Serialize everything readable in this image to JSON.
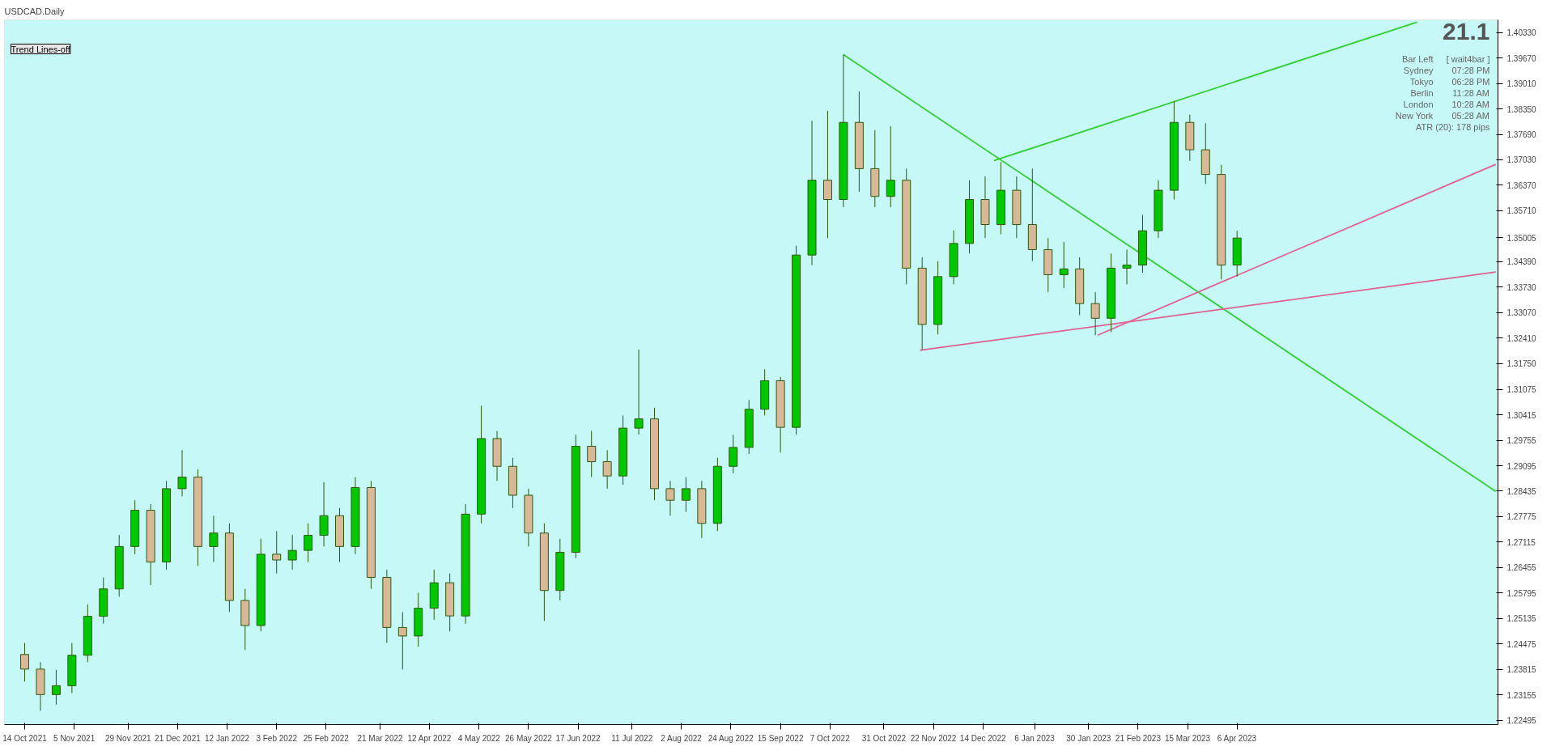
{
  "chart_data": {
    "type": "candlestick",
    "title": "USDCAD.Daily",
    "x": [
      "2021-10-14",
      "2021-10-21",
      "2021-10-28",
      "2021-11-04",
      "2021-11-11",
      "2021-11-18",
      "2021-11-25",
      "2021-12-02",
      "2021-12-09",
      "2021-12-16",
      "2021-12-23",
      "2021-12-30",
      "2022-01-06",
      "2022-01-13",
      "2022-01-20",
      "2022-01-27",
      "2022-02-03",
      "2022-02-10",
      "2022-02-17",
      "2022-02-24",
      "2022-03-03",
      "2022-03-10",
      "2022-03-17",
      "2022-03-24",
      "2022-03-31",
      "2022-04-07",
      "2022-04-14",
      "2022-04-21",
      "2022-04-28",
      "2022-05-05",
      "2022-05-12",
      "2022-05-19",
      "2022-05-26",
      "2022-06-02",
      "2022-06-09",
      "2022-06-16",
      "2022-06-23",
      "2022-06-30",
      "2022-07-07",
      "2022-07-14",
      "2022-07-21",
      "2022-07-28",
      "2022-08-04",
      "2022-08-11",
      "2022-08-18",
      "2022-08-25",
      "2022-09-01",
      "2022-09-08",
      "2022-09-15",
      "2022-09-22",
      "2022-09-29",
      "2022-10-06",
      "2022-10-13",
      "2022-10-20",
      "2022-10-27",
      "2022-11-03",
      "2022-11-10",
      "2022-11-17",
      "2022-11-24",
      "2022-12-01",
      "2022-12-08",
      "2022-12-15",
      "2022-12-22",
      "2022-12-29",
      "2023-01-05",
      "2023-01-12",
      "2023-01-19",
      "2023-01-26",
      "2023-02-02",
      "2023-02-09",
      "2023-02-16",
      "2023-02-23",
      "2023-03-02",
      "2023-03-09",
      "2023-03-16",
      "2023-03-23",
      "2023-03-30",
      "2023-04-06"
    ],
    "ohlc": [
      [
        1.242,
        1.245,
        1.235,
        1.2382
      ],
      [
        1.2382,
        1.24,
        1.2274,
        1.2316
      ],
      [
        1.2316,
        1.238,
        1.229,
        1.2339
      ],
      [
        1.2339,
        1.245,
        1.232,
        1.2418
      ],
      [
        1.2418,
        1.255,
        1.24,
        1.2519
      ],
      [
        1.2519,
        1.262,
        1.25,
        1.259
      ],
      [
        1.259,
        1.273,
        1.257,
        1.27
      ],
      [
        1.27,
        1.282,
        1.268,
        1.2794
      ],
      [
        1.2794,
        1.281,
        1.26,
        1.266
      ],
      [
        1.266,
        1.287,
        1.264,
        1.285
      ],
      [
        1.285,
        1.295,
        1.283,
        1.288
      ],
      [
        1.288,
        1.29,
        1.265,
        1.27
      ],
      [
        1.27,
        1.278,
        1.266,
        1.2735
      ],
      [
        1.2735,
        1.276,
        1.253,
        1.256
      ],
      [
        1.256,
        1.259,
        1.2432,
        1.2495
      ],
      [
        1.2495,
        1.272,
        1.248,
        1.268
      ],
      [
        1.268,
        1.274,
        1.263,
        1.2665
      ],
      [
        1.2665,
        1.273,
        1.264,
        1.269
      ],
      [
        1.269,
        1.276,
        1.266,
        1.2729
      ],
      [
        1.2729,
        1.2867,
        1.27,
        1.278
      ],
      [
        1.278,
        1.28,
        1.266,
        1.27
      ],
      [
        1.27,
        1.288,
        1.268,
        1.2853
      ],
      [
        1.2853,
        1.287,
        1.259,
        1.262
      ],
      [
        1.262,
        1.264,
        1.245,
        1.249
      ],
      [
        1.249,
        1.253,
        1.2381,
        1.2468
      ],
      [
        1.2468,
        1.258,
        1.244,
        1.254
      ],
      [
        1.254,
        1.264,
        1.251,
        1.2606
      ],
      [
        1.2606,
        1.263,
        1.248,
        1.252
      ],
      [
        1.252,
        1.281,
        1.25,
        1.2784
      ],
      [
        1.2784,
        1.3065,
        1.276,
        1.298
      ],
      [
        1.298,
        1.3,
        1.287,
        1.2908
      ],
      [
        1.2908,
        1.293,
        1.28,
        1.2833
      ],
      [
        1.2833,
        1.285,
        1.27,
        1.2735
      ],
      [
        1.2735,
        1.276,
        1.2507,
        1.2586
      ],
      [
        1.2586,
        1.272,
        1.256,
        1.2685
      ],
      [
        1.2685,
        1.299,
        1.267,
        1.296
      ],
      [
        1.296,
        1.3,
        1.288,
        1.292
      ],
      [
        1.292,
        1.295,
        1.285,
        1.2883
      ],
      [
        1.2883,
        1.304,
        1.286,
        1.3007
      ],
      [
        1.3007,
        1.3211,
        1.299,
        1.3031
      ],
      [
        1.3031,
        1.306,
        1.282,
        1.285
      ],
      [
        1.285,
        1.287,
        1.278,
        1.282
      ],
      [
        1.282,
        1.288,
        1.279,
        1.285
      ],
      [
        1.285,
        1.287,
        1.2722,
        1.276
      ],
      [
        1.276,
        1.293,
        1.274,
        1.2908
      ],
      [
        1.2908,
        1.299,
        1.289,
        1.2957
      ],
      [
        1.2957,
        1.308,
        1.294,
        1.3056
      ],
      [
        1.3056,
        1.316,
        1.304,
        1.313
      ],
      [
        1.313,
        1.314,
        1.2944,
        1.3009
      ],
      [
        1.3009,
        1.348,
        1.299,
        1.3456
      ],
      [
        1.3456,
        1.3804,
        1.343,
        1.365
      ],
      [
        1.365,
        1.383,
        1.35,
        1.36
      ],
      [
        1.36,
        1.3976,
        1.358,
        1.38
      ],
      [
        1.38,
        1.388,
        1.362,
        1.368
      ],
      [
        1.368,
        1.378,
        1.358,
        1.3608
      ],
      [
        1.3608,
        1.379,
        1.358,
        1.365
      ],
      [
        1.365,
        1.368,
        1.338,
        1.3422
      ],
      [
        1.3422,
        1.345,
        1.3211,
        1.3276
      ],
      [
        1.3276,
        1.344,
        1.325,
        1.34
      ],
      [
        1.34,
        1.352,
        1.338,
        1.3486
      ],
      [
        1.3486,
        1.365,
        1.346,
        1.36
      ],
      [
        1.36,
        1.366,
        1.35,
        1.3535
      ],
      [
        1.3535,
        1.3697,
        1.351,
        1.3624
      ],
      [
        1.3624,
        1.366,
        1.35,
        1.3535
      ],
      [
        1.3535,
        1.368,
        1.344,
        1.347
      ],
      [
        1.347,
        1.35,
        1.336,
        1.3405
      ],
      [
        1.3405,
        1.349,
        1.337,
        1.342
      ],
      [
        1.342,
        1.345,
        1.33,
        1.333
      ],
      [
        1.333,
        1.336,
        1.3248,
        1.3292
      ],
      [
        1.3292,
        1.346,
        1.3256,
        1.3422
      ],
      [
        1.3422,
        1.347,
        1.338,
        1.343
      ],
      [
        1.343,
        1.356,
        1.341,
        1.3519
      ],
      [
        1.3519,
        1.365,
        1.35,
        1.3624
      ],
      [
        1.3624,
        1.3855,
        1.36,
        1.38
      ],
      [
        1.38,
        1.382,
        1.37,
        1.3729
      ],
      [
        1.3729,
        1.3798,
        1.364,
        1.3665
      ],
      [
        1.3665,
        1.369,
        1.3393,
        1.343
      ],
      [
        1.343,
        1.3519,
        1.34,
        1.35
      ]
    ],
    "series": [
      {
        "type": "line",
        "color": "#32cd32",
        "x": [
          "2022-10-13",
          "2023-07-30"
        ],
        "values": [
          1.3976,
          1.2843
        ]
      },
      {
        "type": "line",
        "color": "#32cd32",
        "x": [
          "2022-12-19",
          "2023-06-25"
        ],
        "values": [
          1.3701,
          1.406
        ]
      },
      {
        "type": "line",
        "color": "#e06090",
        "x": [
          "2023-02-03",
          "2023-07-30"
        ],
        "values": [
          1.3248,
          1.3691
        ]
      },
      {
        "type": "line",
        "color": "#e06090",
        "x": [
          "2022-11-16",
          "2023-07-30"
        ],
        "values": [
          1.3209,
          1.3412
        ]
      }
    ],
    "xlim": [
      "2021-10-05",
      "2023-07-31"
    ],
    "xticks": [
      {
        "value": "2021-10-14",
        "label": "14 Oct 2021"
      },
      {
        "value": "2021-11-05",
        "label": "5 Nov 2021"
      },
      {
        "value": "2021-11-29",
        "label": "29 Nov 2021"
      },
      {
        "value": "2021-12-21",
        "label": "21 Dec 2021"
      },
      {
        "value": "2022-01-12",
        "label": "12 Jan 2022"
      },
      {
        "value": "2022-02-03",
        "label": "3 Feb 2022"
      },
      {
        "value": "2022-02-25",
        "label": "25 Feb 2022"
      },
      {
        "value": "2022-03-21",
        "label": "21 Mar 2022"
      },
      {
        "value": "2022-04-12",
        "label": "12 Apr 2022"
      },
      {
        "value": "2022-05-04",
        "label": "4 May 2022"
      },
      {
        "value": "2022-05-26",
        "label": "26 May 2022"
      },
      {
        "value": "2022-06-17",
        "label": "17 Jun 2022"
      },
      {
        "value": "2022-07-11",
        "label": "11 Jul 2022"
      },
      {
        "value": "2022-08-02",
        "label": "2 Aug 2022"
      },
      {
        "value": "2022-08-24",
        "label": "24 Aug 2022"
      },
      {
        "value": "2022-09-15",
        "label": "15 Sep 2022"
      },
      {
        "value": "2022-10-07",
        "label": "7 Oct 2022"
      },
      {
        "value": "2022-10-31",
        "label": "31 Oct 2022"
      },
      {
        "value": "2022-11-22",
        "label": "22 Nov 2022"
      },
      {
        "value": "2022-12-14",
        "label": "14 Dec 2022"
      },
      {
        "value": "2023-01-06",
        "label": "6 Jan 2023"
      },
      {
        "value": "2023-01-30",
        "label": "30 Jan 2023"
      },
      {
        "value": "2023-02-21",
        "label": "21 Feb 2023"
      },
      {
        "value": "2023-03-15",
        "label": "15 Mar 2023"
      },
      {
        "value": "2023-04-06",
        "label": "6 Apr 2023"
      }
    ],
    "ylim": [
      1.2238,
      1.4066
    ],
    "yticks": [
      {
        "value": 1.22495,
        "label": "1.22495"
      },
      {
        "value": 1.23155,
        "label": "1.23155"
      },
      {
        "value": 1.23815,
        "label": "1.23815"
      },
      {
        "value": 1.24475,
        "label": "1.24475"
      },
      {
        "value": 1.25135,
        "label": "1.25135"
      },
      {
        "value": 1.25795,
        "label": "1.25795"
      },
      {
        "value": 1.26455,
        "label": "1.26455"
      },
      {
        "value": 1.27115,
        "label": "1.27115"
      },
      {
        "value": 1.27775,
        "label": "1.27775"
      },
      {
        "value": 1.28435,
        "label": "1.28435"
      },
      {
        "value": 1.29095,
        "label": "1.29095"
      },
      {
        "value": 1.29755,
        "label": "1.29755"
      },
      {
        "value": 1.30415,
        "label": "1.30415"
      },
      {
        "value": 1.31075,
        "label": "1.31075"
      },
      {
        "value": 1.3175,
        "label": "1.31750"
      },
      {
        "value": 1.3241,
        "label": "1.32410"
      },
      {
        "value": 1.3307,
        "label": "1.33070"
      },
      {
        "value": 1.3373,
        "label": "1.33730"
      },
      {
        "value": 1.3439,
        "label": "1.34390"
      },
      {
        "value": 1.35005,
        "label": "1.35005"
      },
      {
        "value": 1.3571,
        "label": "1.35710"
      },
      {
        "value": 1.3637,
        "label": "1.36370"
      },
      {
        "value": 1.3703,
        "label": "1.37030"
      },
      {
        "value": 1.3769,
        "label": "1.37690"
      },
      {
        "value": 1.3835,
        "label": "1.38350"
      },
      {
        "value": 1.3901,
        "label": "1.39010"
      },
      {
        "value": 1.3967,
        "label": "1.39670"
      },
      {
        "value": 1.4033,
        "label": "1.40330"
      }
    ],
    "grid": false,
    "annotations": [
      "Trend Lines-off",
      "21.1",
      "Bar Left",
      "[ wait4bar ]",
      "Sydney",
      "07:28 PM",
      "Tokyo",
      "06:28 PM",
      "Berlin",
      "11:28 AM",
      "London",
      "10:28 AM",
      "New York",
      "05:28 AM",
      "ATR (20): 178 pips"
    ]
  }
}
